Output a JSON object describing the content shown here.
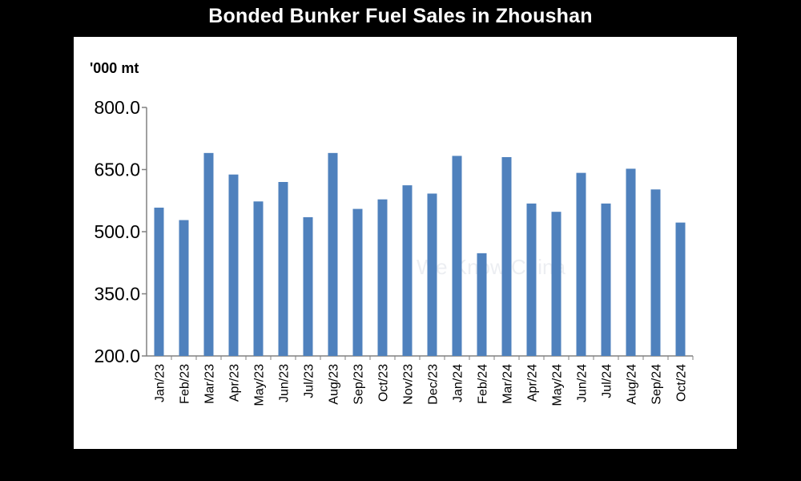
{
  "chart_data": {
    "type": "bar",
    "title": "Bonded Bunker Fuel Sales in Zhoushan",
    "ylabel": "'000 mt",
    "xlabel": "",
    "ylim": [
      200,
      800
    ],
    "yticks": [
      "800.0",
      "650.0",
      "500.0",
      "350.0",
      "200.0"
    ],
    "yticks_values": [
      800,
      650,
      500,
      350,
      200
    ],
    "categories": [
      "Jan/23",
      "Feb/23",
      "Mar/23",
      "Apr/23",
      "May/23",
      "Jun/23",
      "Jul/23",
      "Aug/23",
      "Sep/23",
      "Oct/23",
      "Nov/23",
      "Dec/23",
      "Jan/24",
      "Feb/24",
      "Mar/24",
      "Apr/24",
      "May/24",
      "Jun/24",
      "Jul/24",
      "Aug/24",
      "Sep/24",
      "Oct/24"
    ],
    "values": [
      558,
      528,
      690,
      638,
      573,
      620,
      535,
      690,
      555,
      578,
      612,
      592,
      683,
      448,
      680,
      568,
      548,
      642,
      568,
      652,
      602,
      522
    ],
    "bar_color": "#4f81bd",
    "grid": false,
    "legend": "none"
  },
  "watermark": "We Know China"
}
